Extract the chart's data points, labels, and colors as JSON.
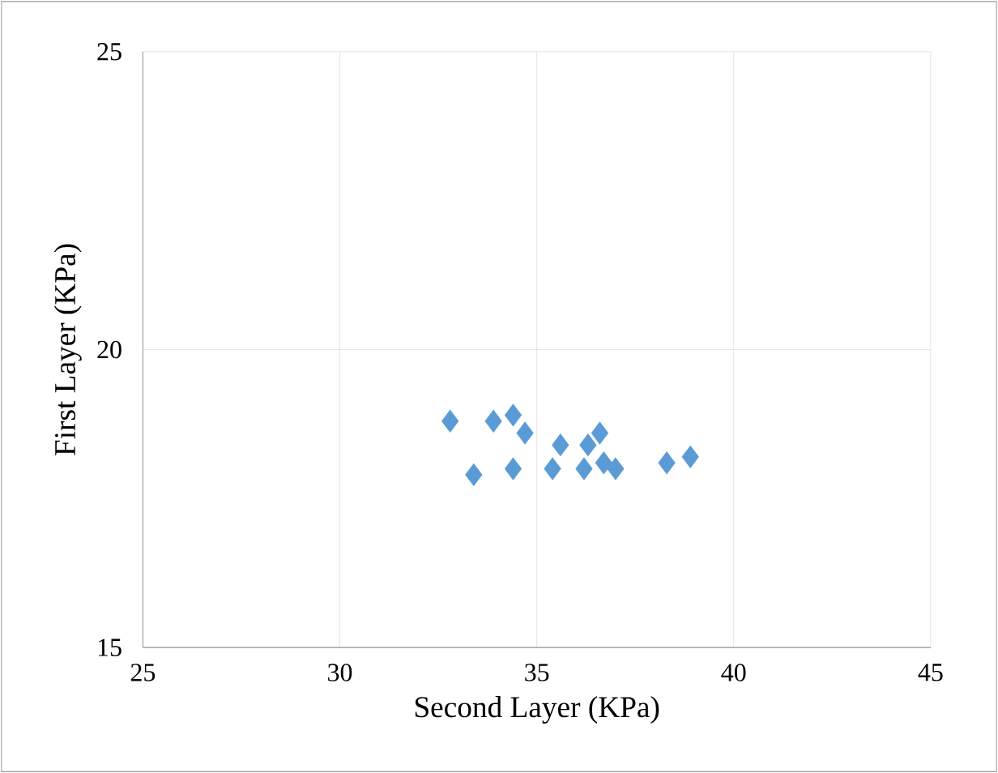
{
  "chart_data": {
    "type": "scatter",
    "xlabel": "Second Layer (KPa)",
    "ylabel": "First Layer (KPa)",
    "x": [
      32.8,
      33.9,
      34.4,
      34.7,
      33.4,
      34.4,
      35.6,
      35.4,
      36.3,
      36.6,
      36.2,
      36.7,
      37.0,
      38.3,
      38.9
    ],
    "series": [
      {
        "color": "#5b9bd5",
        "values": [
          18.8,
          18.8,
          18.9,
          18.6,
          17.9,
          18.0,
          18.4,
          18.0,
          18.4,
          18.6,
          18.0,
          18.1,
          18.0,
          18.1,
          18.2
        ]
      }
    ],
    "xlim": [
      25,
      45
    ],
    "ylim": [
      15,
      25
    ],
    "xticks": [
      25,
      30,
      35,
      40,
      45
    ],
    "yticks": [
      15,
      20,
      25
    ],
    "grid": true,
    "marker": "diamond"
  }
}
